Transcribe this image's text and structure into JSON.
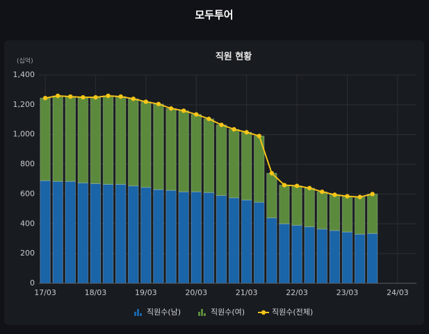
{
  "header": {
    "title": "모두투어"
  },
  "chart_data": {
    "type": "bar",
    "stacked": true,
    "title": "직원 현황",
    "unit_label": "(십억)",
    "categories": [
      "17/03",
      null,
      null,
      null,
      "18/03",
      null,
      null,
      null,
      "19/03",
      null,
      null,
      null,
      "20/03",
      null,
      null,
      null,
      "21/03",
      null,
      null,
      null,
      "22/03",
      null,
      null,
      null,
      "23/03",
      null,
      null,
      null,
      "24/03",
      null
    ],
    "series": [
      {
        "name": "직원수(남)",
        "type": "bar",
        "color": "#1a64a8",
        "values": [
          690,
          685,
          685,
          675,
          670,
          665,
          665,
          655,
          645,
          630,
          625,
          615,
          615,
          610,
          590,
          575,
          560,
          545,
          440,
          400,
          390,
          380,
          365,
          355,
          345,
          330,
          335,
          null,
          null,
          null
        ]
      },
      {
        "name": "직원수(여)",
        "type": "bar",
        "color": "#5b8a3c",
        "values": [
          555,
          575,
          570,
          575,
          580,
          595,
          590,
          585,
          575,
          575,
          550,
          545,
          520,
          495,
          475,
          460,
          455,
          445,
          300,
          260,
          265,
          260,
          250,
          240,
          240,
          250,
          265,
          null,
          null,
          null
        ]
      },
      {
        "name": "직원수(전체)",
        "type": "line",
        "color": "#f5c518",
        "values": [
          1245,
          1260,
          1255,
          1250,
          1250,
          1260,
          1255,
          1240,
          1220,
          1205,
          1175,
          1160,
          1135,
          1105,
          1065,
          1035,
          1015,
          990,
          740,
          660,
          655,
          640,
          615,
          595,
          585,
          580,
          600,
          null,
          null,
          null
        ]
      }
    ],
    "ylim": [
      0,
      1400
    ],
    "yticks": [
      0,
      200,
      400,
      600,
      800,
      {
        "value": 1000,
        "label": "1,000"
      },
      {
        "value": 1200,
        "label": "1,200"
      },
      {
        "value": 1400,
        "label": "1,400"
      }
    ],
    "grid": true
  }
}
